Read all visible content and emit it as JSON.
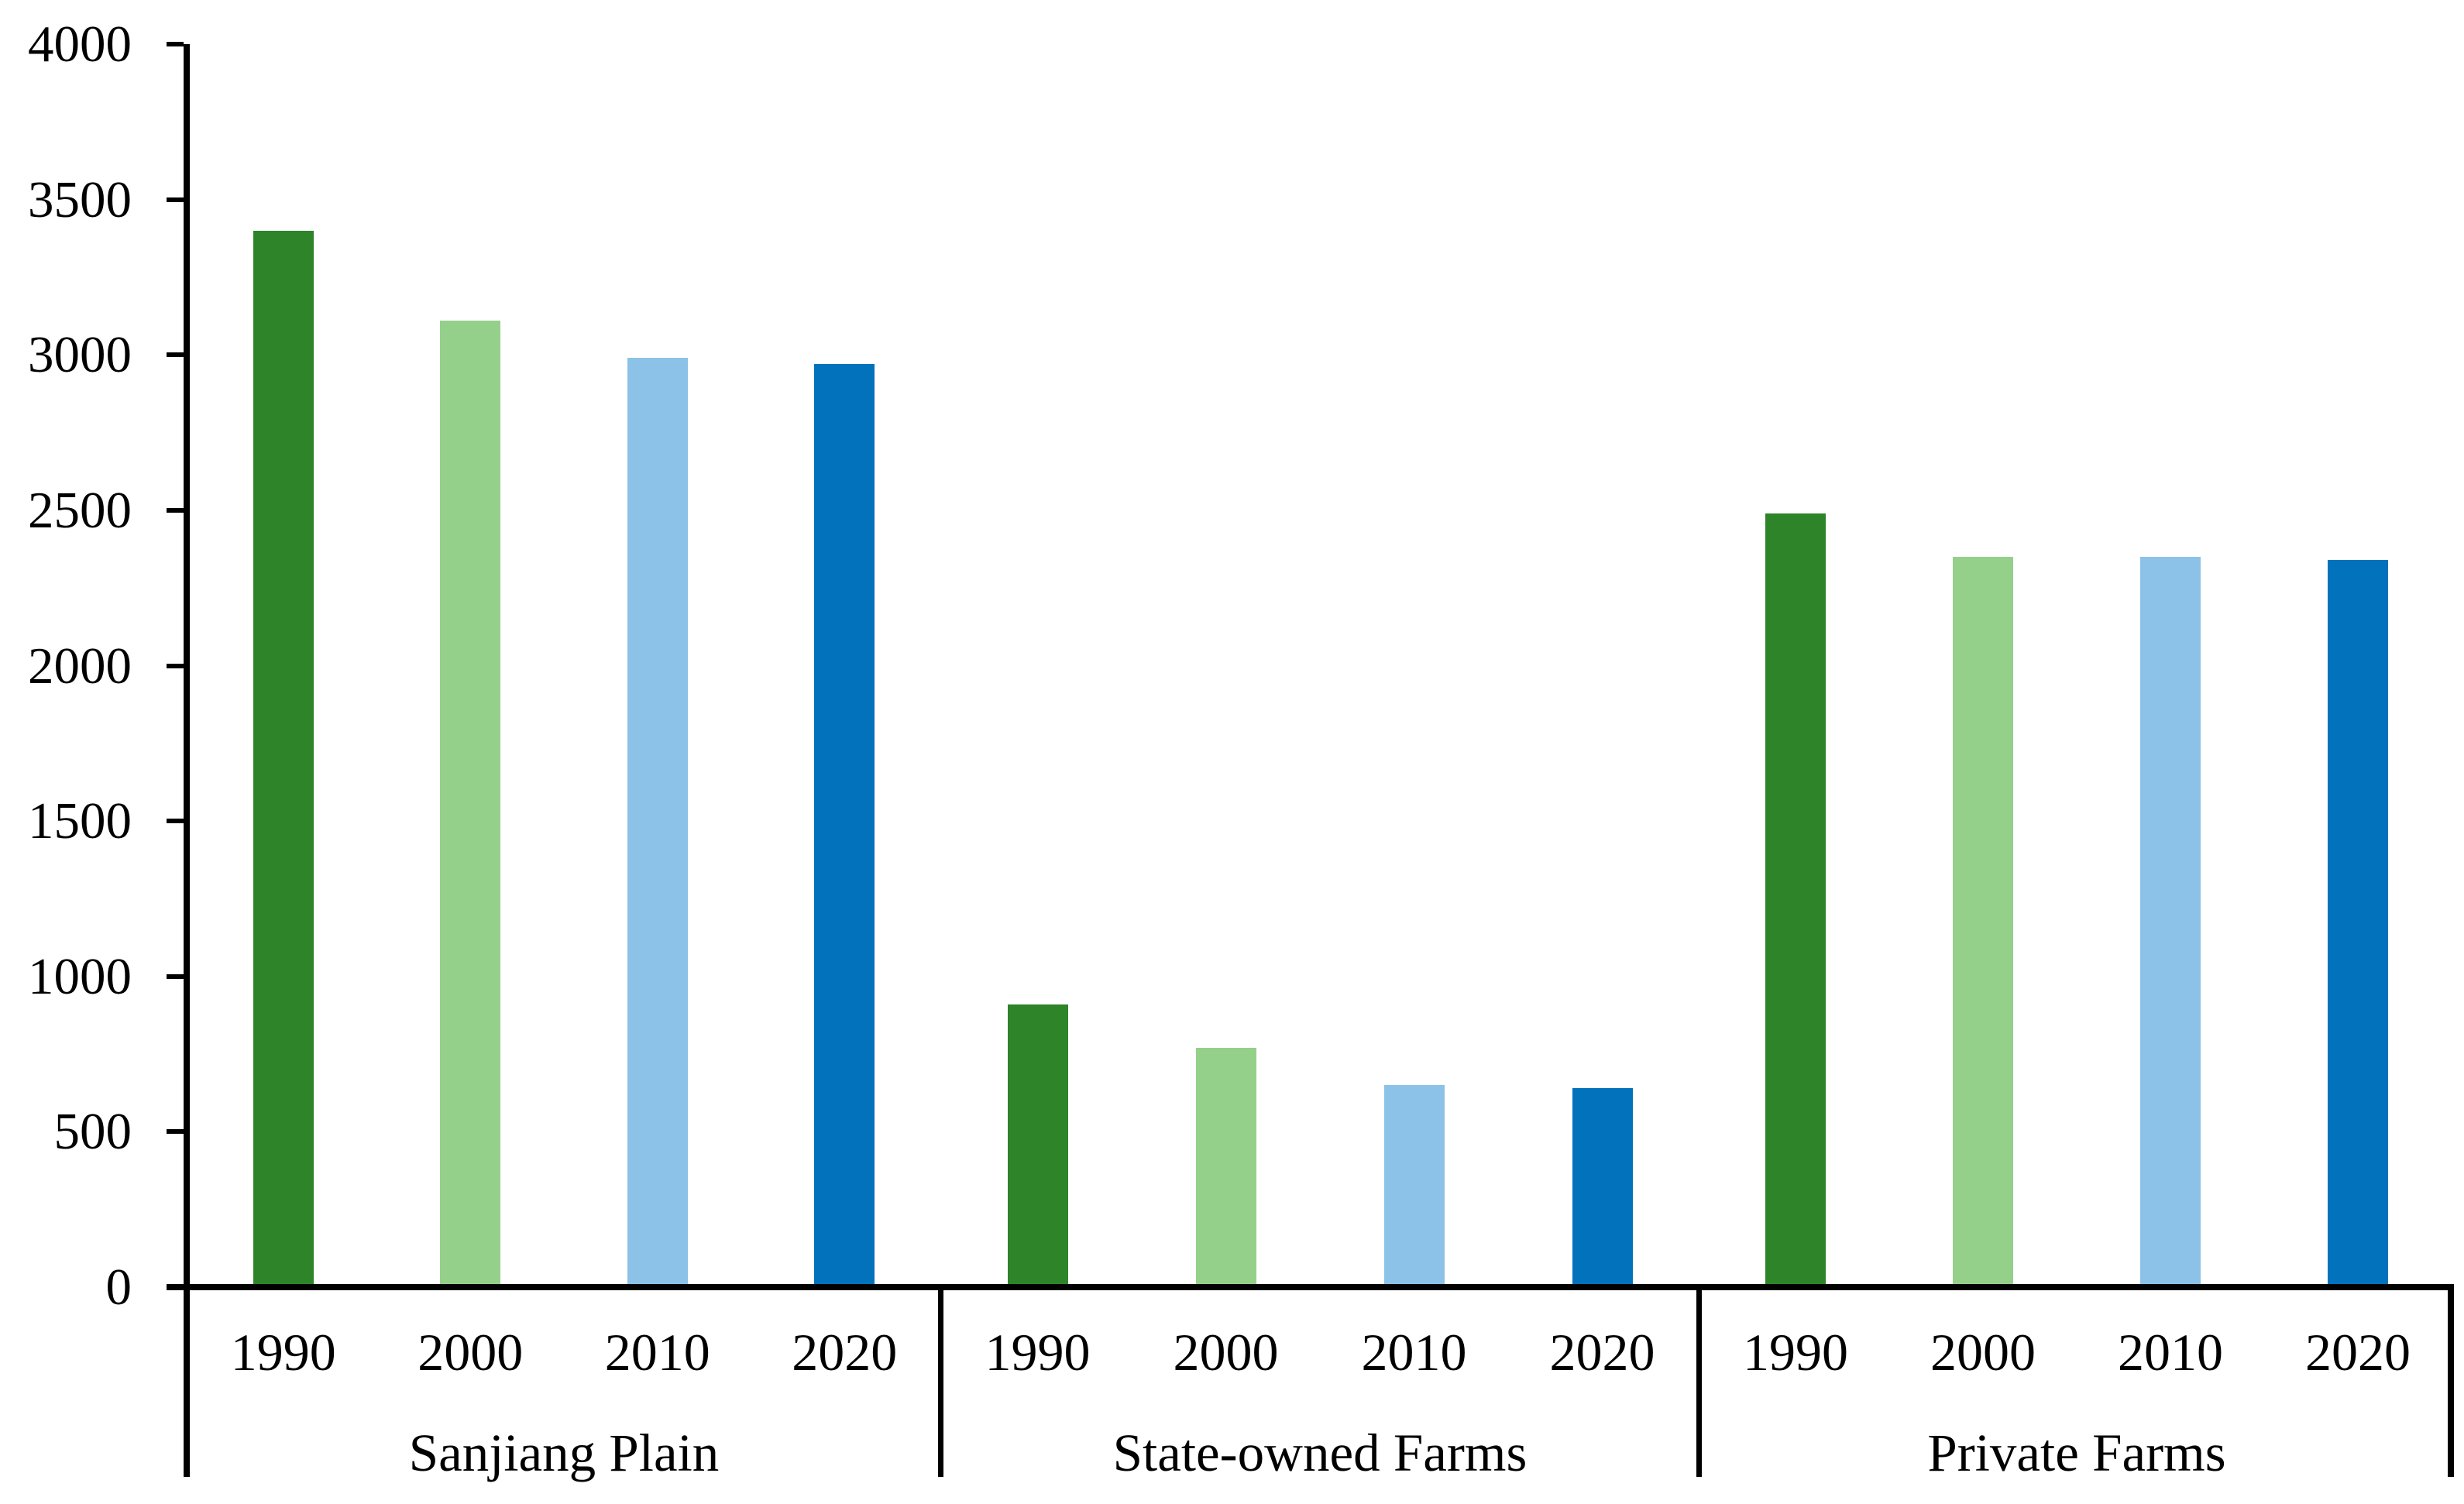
{
  "chart_data": {
    "type": "bar",
    "title": "",
    "legend": "none",
    "grid": false,
    "background": "#FFFFFF",
    "axis_color": "#000000",
    "years": [
      "1990",
      "2000",
      "2010",
      "2020"
    ],
    "year_colors": {
      "1990": "#2E8428",
      "2000": "#95D08B",
      "2010": "#8CC1E8",
      "2020": "#0272BC"
    },
    "groups": [
      {
        "label": "Sanjiang Plain",
        "values": [
          3390,
          3100,
          2980,
          2960
        ]
      },
      {
        "label": "State-owned Farms",
        "values": [
          900,
          760,
          640,
          630
        ]
      },
      {
        "label": "Private Farms",
        "values": [
          2480,
          2340,
          2340,
          2330
        ]
      }
    ],
    "y_axis": {
      "min": 0,
      "max": 4000,
      "step": 500,
      "tick_labels": [
        "0",
        "500",
        "1000",
        "1500",
        "2000",
        "2500",
        "3000",
        "3500",
        "4000"
      ]
    },
    "xlabel": "",
    "ylabel": ""
  }
}
